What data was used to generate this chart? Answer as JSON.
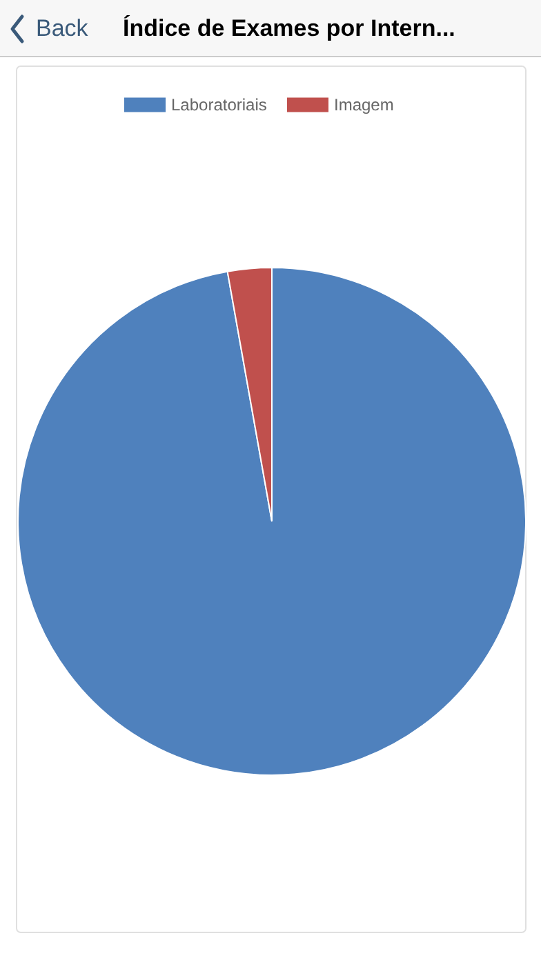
{
  "chart_data": {
    "type": "pie",
    "title": "Índice de Exames por Intern...",
    "annotations": [
      "Back"
    ],
    "categories": [
      "Laboratoriais",
      "Imagem"
    ],
    "values": [
      97.2,
      2.8
    ],
    "colors": [
      "#4f81bd",
      "#c0504d"
    ],
    "legend": "top"
  }
}
